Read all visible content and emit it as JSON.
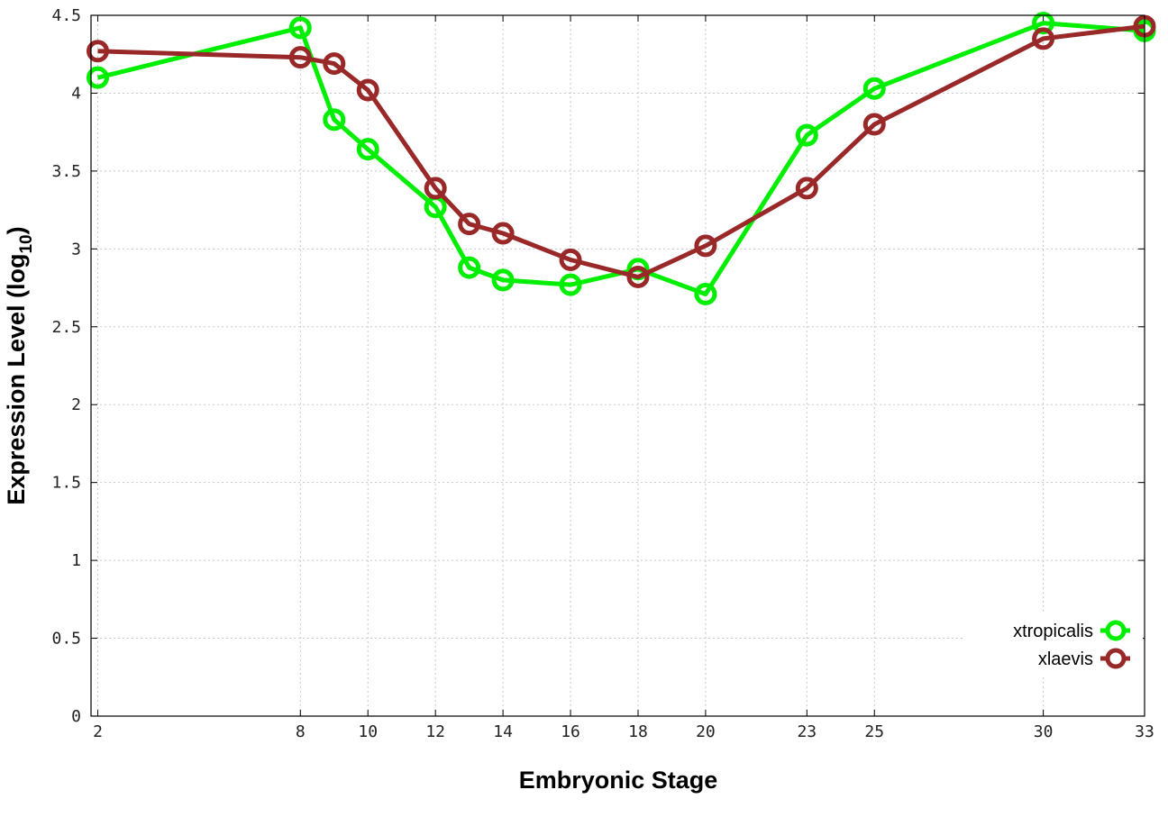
{
  "chart_data": {
    "type": "line",
    "title": "",
    "xlabel": "Embryonic Stage",
    "ylabel": {
      "main": "Expression Level (log",
      "subscript": "10",
      "suffix": ")"
    },
    "x_ticks": [
      2,
      8,
      10,
      12,
      14,
      16,
      18,
      20,
      23,
      25,
      30,
      33
    ],
    "y_ticks": [
      "0",
      "0.5",
      "1",
      "1.5",
      "2",
      "2.5",
      "3",
      "3.5",
      "4",
      "4.5"
    ],
    "xlim": [
      1.8,
      33
    ],
    "ylim": [
      0,
      4.5
    ],
    "grid": true,
    "legend_position": "bottom-right",
    "series": [
      {
        "name": "xtropicalis",
        "color": "#00ee00",
        "x": [
          2,
          8,
          9,
          10,
          12,
          13,
          14,
          16,
          18,
          20,
          23,
          25,
          30,
          33
        ],
        "y": [
          4.1,
          4.42,
          3.83,
          3.64,
          3.27,
          2.88,
          2.8,
          2.77,
          2.87,
          2.71,
          3.73,
          4.03,
          4.45,
          4.4
        ]
      },
      {
        "name": "xlaevis",
        "color": "#992828",
        "x": [
          2,
          8,
          9,
          10,
          12,
          13,
          14,
          16,
          18,
          20,
          23,
          25,
          30,
          33
        ],
        "y": [
          4.27,
          4.23,
          4.19,
          4.02,
          3.39,
          3.16,
          3.1,
          2.93,
          2.82,
          3.02,
          3.39,
          3.8,
          4.35,
          4.43
        ]
      }
    ]
  }
}
